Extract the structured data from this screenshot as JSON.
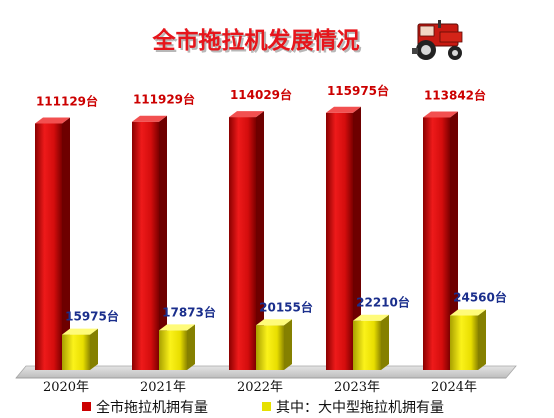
{
  "chart_data": {
    "type": "bar",
    "title": "全市拖拉机发展情况",
    "categories": [
      "2020年",
      "2021年",
      "2022年",
      "2023年",
      "2024年"
    ],
    "unit": "台",
    "ylim": [
      0,
      125000
    ],
    "series": [
      {
        "name": "全市拖拉机拥有量",
        "values": [
          111129,
          111929,
          114029,
          115975,
          113842
        ],
        "color": "#d40d0d",
        "label_color": "#cc0000"
      },
      {
        "name": "其中：大中型拖拉机拥有量",
        "values": [
          15975,
          17873,
          20155,
          22210,
          24560
        ],
        "color": "#f0e800",
        "label_color": "#1a2e8c"
      }
    ],
    "grid": false,
    "legend_position": "bottom",
    "icons": [
      "tractor-icon"
    ],
    "colors": {
      "background": "#ffffff",
      "title_color": "#e6151b",
      "title_shadow": "#b8b8b8",
      "floor": "#c9c9c9"
    }
  }
}
